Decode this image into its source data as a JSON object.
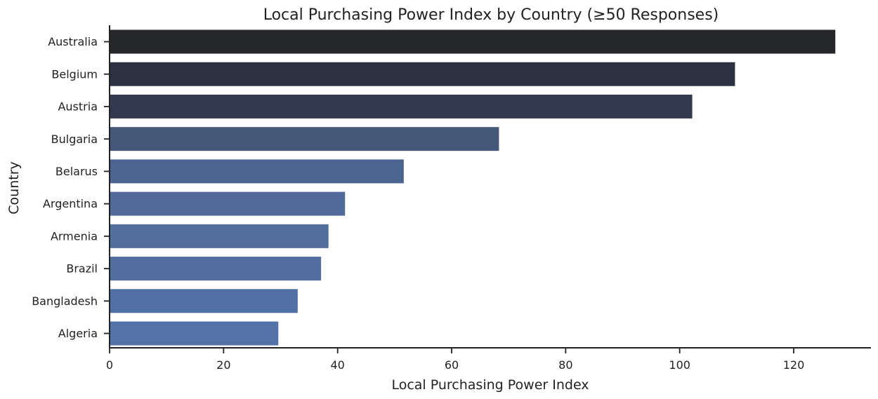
{
  "chart_data": {
    "type": "bar",
    "orientation": "horizontal",
    "title": "Local Purchasing Power Index by Country (≥50 Responses)",
    "xlabel": "Local Purchasing Power Index",
    "ylabel": "Country",
    "xlim": [
      0,
      133
    ],
    "xticks": [
      0,
      20,
      40,
      60,
      80,
      100,
      120
    ],
    "grid": false,
    "categories": [
      "Australia",
      "Belgium",
      "Austria",
      "Bulgaria",
      "Belarus",
      "Argentina",
      "Armenia",
      "Brazil",
      "Bangladesh",
      "Algeria"
    ],
    "values": [
      127.3,
      109.7,
      102.2,
      68.3,
      51.6,
      41.3,
      38.4,
      37.1,
      33.0,
      29.6
    ],
    "colors": [
      "#25272b",
      "#2c3241",
      "#323a4f",
      "#465879",
      "#4c6490",
      "#516a99",
      "#536d9c",
      "#536e9e",
      "#5270a3",
      "#5372a7"
    ]
  }
}
